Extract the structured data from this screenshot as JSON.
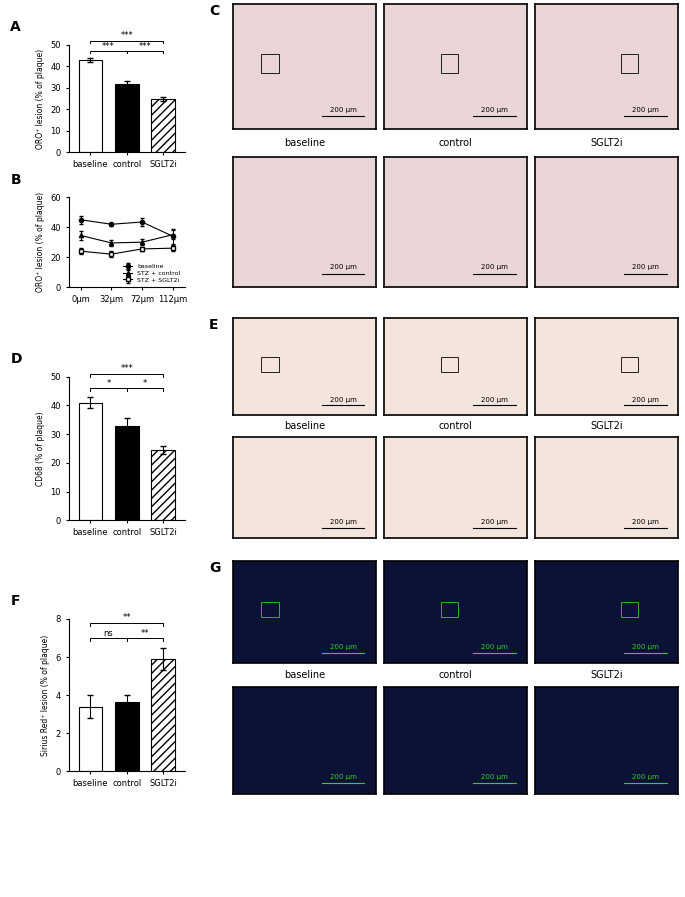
{
  "chart_data": [
    {
      "type": "bar",
      "panel": "A",
      "y_label": "ORO⁺ lesion (% of plaque)",
      "categories": [
        "baseline",
        "control",
        "SGLT2i"
      ],
      "values": [
        43,
        32,
        25
      ],
      "errors": [
        1.0,
        1.3,
        1.0
      ],
      "colors": [
        "#ffffff",
        "#000000",
        "#ffffff"
      ],
      "ylim": [
        0,
        50
      ],
      "yticks": [
        0,
        10,
        20,
        30,
        40,
        50
      ],
      "annotations": [
        {
          "between": [
            "baseline",
            "control"
          ],
          "text": "***"
        },
        {
          "between": [
            "control",
            "SGLT2i"
          ],
          "text": "***"
        },
        {
          "between": [
            "baseline",
            "SGLT2i"
          ],
          "text": "***"
        }
      ]
    },
    {
      "type": "line",
      "panel": "B",
      "y_label": "ORO⁺ lesion (% of plaque)",
      "categories": [
        "0µm",
        "32µm",
        "72µm",
        "112µm"
      ],
      "series": [
        {
          "name": "baseline",
          "color": "#000000",
          "marker": "circle",
          "values": [
            45,
            42,
            43.5,
            34
          ],
          "errors": [
            2.5,
            1,
            2.5,
            5
          ]
        },
        {
          "name": "STZ + control",
          "color": "#000000",
          "marker": "triangle",
          "values": [
            34.5,
            29.5,
            30,
            35
          ],
          "errors": [
            3,
            2,
            2,
            3
          ]
        },
        {
          "name": "STZ + SGLT2i",
          "color": "#000000",
          "marker": "open-square",
          "values": [
            24,
            22,
            25.5,
            26
          ],
          "errors": [
            2,
            2,
            1.5,
            2
          ]
        }
      ],
      "ylim": [
        0,
        60
      ],
      "yticks": [
        0,
        20,
        40,
        60
      ],
      "legend": "lower right"
    },
    {
      "type": "bar",
      "panel": "D",
      "y_label": "CD68 (% of plaque)",
      "categories": [
        "baseline",
        "control",
        "SGLT2i"
      ],
      "values": [
        41,
        33,
        24.5
      ],
      "errors": [
        2,
        2.5,
        1.5
      ],
      "colors": [
        "#ffffff",
        "#000000",
        "#ffffff"
      ],
      "ylim": [
        0,
        50
      ],
      "yticks": [
        0,
        10,
        20,
        30,
        40,
        50
      ],
      "annotations": [
        {
          "between": [
            "baseline",
            "control"
          ],
          "text": "*"
        },
        {
          "between": [
            "control",
            "SGLT2i"
          ],
          "text": "*"
        },
        {
          "between": [
            "baseline",
            "SGLT2i"
          ],
          "text": "***"
        }
      ]
    },
    {
      "type": "bar",
      "panel": "F",
      "y_label": "Sirius Red⁺ lesion (% of plaque)",
      "categories": [
        "baseline",
        "control",
        "SGLT2i"
      ],
      "values": [
        3.4,
        3.65,
        5.9
      ],
      "errors": [
        0.6,
        0.35,
        0.6
      ],
      "colors": [
        "#ffffff",
        "#000000",
        "#ffffff"
      ],
      "ylim": [
        0,
        8
      ],
      "yticks": [
        0,
        2,
        4,
        6,
        8
      ],
      "annotations": [
        {
          "between": [
            "baseline",
            "control"
          ],
          "text": "ns"
        },
        {
          "between": [
            "control",
            "SGLT2i"
          ],
          "text": "**"
        },
        {
          "between": [
            "baseline",
            "SGLT2i"
          ],
          "text": "**"
        }
      ]
    }
  ],
  "image_panels": [
    {
      "panel": "C",
      "labels": [
        "baseline",
        "control",
        "SGLT2i"
      ],
      "scale_bar": "200 µm",
      "color": "#ead6d6",
      "text_color": "#000000"
    },
    {
      "panel": "E",
      "labels": [
        "baseline",
        "control",
        "SGLT2i"
      ],
      "scale_bar": "200 µm",
      "color": "#f3e4dc",
      "text_color": "#000000"
    },
    {
      "panel": "G",
      "labels": [
        "baseline",
        "control",
        "SGLT2i"
      ],
      "scale_bar": "200 µm",
      "color": "#0c1236",
      "text_color": "#33cc33"
    }
  ]
}
